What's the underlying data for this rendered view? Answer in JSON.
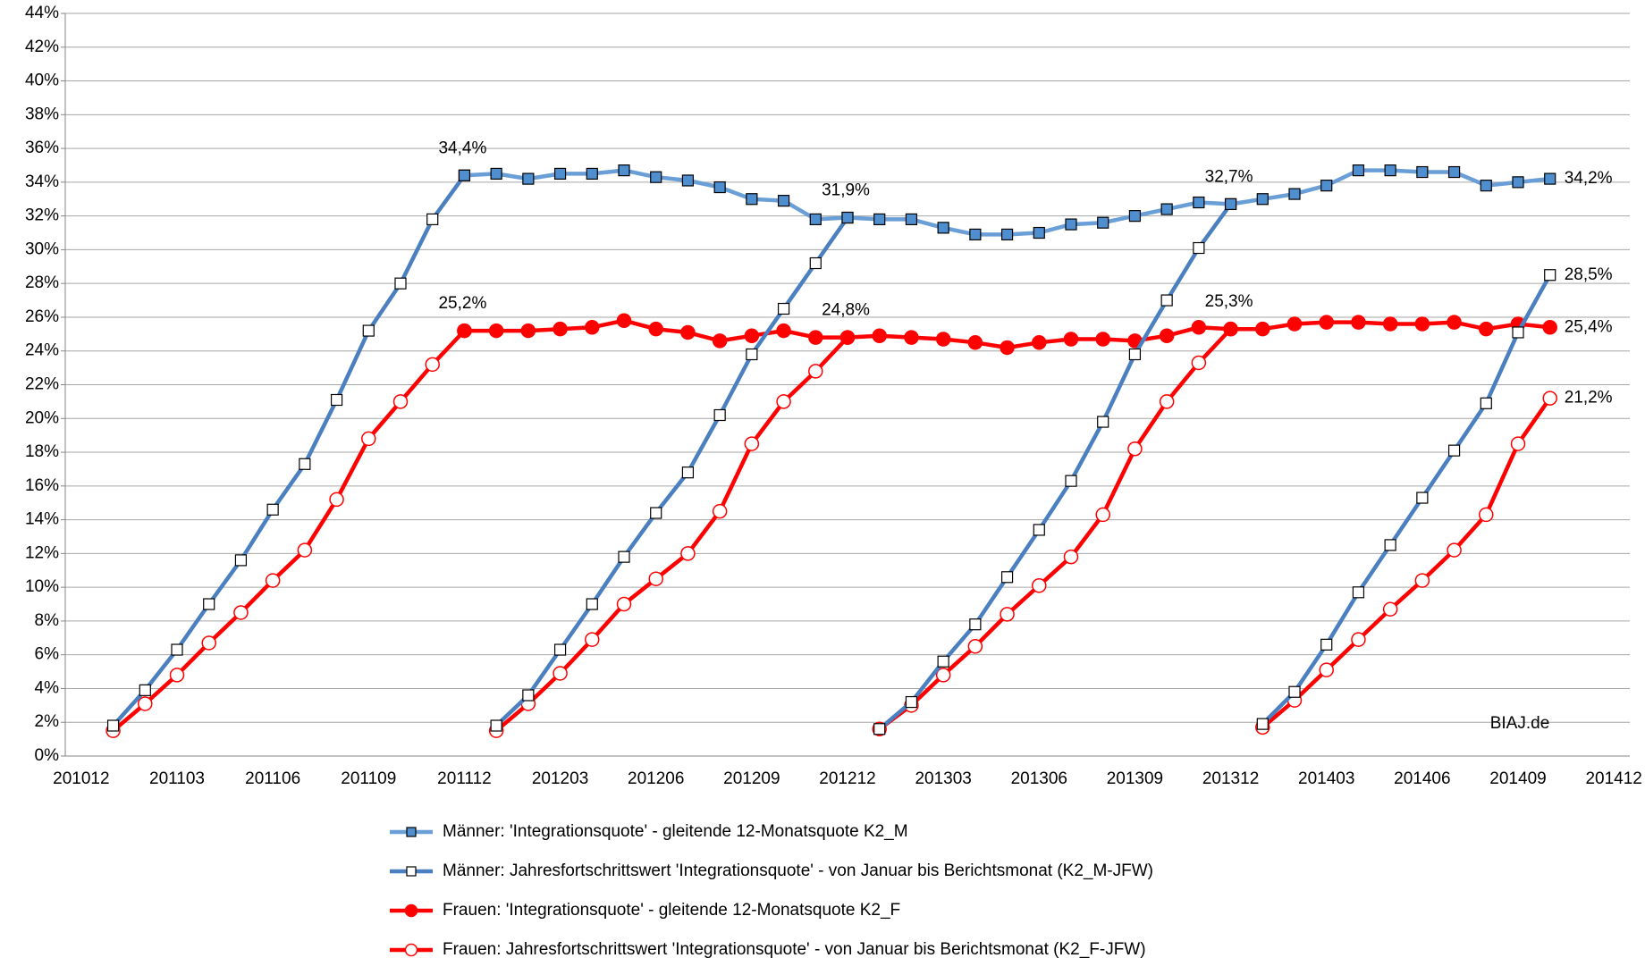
{
  "chart_data": {
    "type": "line",
    "categories": [
      "201012",
      null,
      null,
      "201103",
      null,
      null,
      "201106",
      null,
      null,
      "201109",
      null,
      null,
      "201112",
      null,
      null,
      "201203",
      null,
      null,
      "201206",
      null,
      null,
      "201209",
      null,
      null,
      "201212",
      null,
      null,
      "201303",
      null,
      null,
      "201306",
      null,
      null,
      "201309",
      null,
      null,
      "201312",
      null,
      null,
      "201403",
      null,
      null,
      "201406",
      null,
      null,
      "201409",
      null,
      null,
      "201412"
    ],
    "ylim": [
      0,
      44
    ],
    "yticks": [
      {
        "value": 0,
        "label": "0%"
      },
      {
        "value": 2,
        "label": "2%"
      },
      {
        "value": 4,
        "label": "4%"
      },
      {
        "value": 6,
        "label": "6%"
      },
      {
        "value": 8,
        "label": "8%"
      },
      {
        "value": 10,
        "label": "10%"
      },
      {
        "value": 12,
        "label": "12%"
      },
      {
        "value": 14,
        "label": "14%"
      },
      {
        "value": 16,
        "label": "16%"
      },
      {
        "value": 18,
        "label": "18%"
      },
      {
        "value": 20,
        "label": "20%"
      },
      {
        "value": 22,
        "label": "22%"
      },
      {
        "value": 24,
        "label": "24%"
      },
      {
        "value": 26,
        "label": "26%"
      },
      {
        "value": 28,
        "label": "28%"
      },
      {
        "value": 30,
        "label": "30%"
      },
      {
        "value": 32,
        "label": "32%"
      },
      {
        "value": 34,
        "label": "34%"
      },
      {
        "value": 36,
        "label": "36%"
      },
      {
        "value": 38,
        "label": "38%"
      },
      {
        "value": 40,
        "label": "40%"
      },
      {
        "value": 42,
        "label": "42%"
      },
      {
        "value": 44,
        "label": "44%"
      }
    ],
    "grid": true,
    "annotation": "BIAJ.de",
    "series": [
      {
        "name": "Männer: 'Integrationsquote' - gleitende 12-Monatsquote K2_M",
        "color": "#6a9ed6",
        "marker_color": "#4f8fd0",
        "marker": "square",
        "filled": true,
        "values": [
          null,
          null,
          null,
          null,
          null,
          null,
          null,
          null,
          null,
          null,
          null,
          null,
          34.4,
          34.5,
          34.2,
          34.5,
          34.5,
          34.7,
          34.3,
          34.1,
          33.7,
          33.0,
          32.9,
          31.8,
          31.9,
          31.8,
          31.8,
          31.3,
          30.9,
          30.9,
          31.0,
          31.5,
          31.6,
          32.0,
          32.4,
          32.8,
          32.7,
          33.0,
          33.3,
          33.8,
          34.7,
          34.7,
          34.6,
          34.6,
          33.8,
          34.0,
          34.2,
          null,
          null
        ],
        "value_labels": [
          null,
          null,
          null,
          null,
          null,
          null,
          null,
          null,
          null,
          null,
          null,
          null,
          "34,4%",
          null,
          null,
          null,
          null,
          null,
          null,
          null,
          null,
          null,
          null,
          null,
          "31,9%",
          null,
          null,
          null,
          null,
          null,
          null,
          null,
          null,
          null,
          null,
          null,
          "32,7%",
          null,
          null,
          null,
          null,
          null,
          null,
          null,
          null,
          null,
          "34,2%",
          null,
          null
        ]
      },
      {
        "name": "Männer: Jahresfortschrittswert 'Integrationsquote' - von Januar bis Berichtsmonat (K2_M-JFW)",
        "color": "#4a7fc0",
        "marker": "square",
        "filled": false,
        "values": [
          null,
          1.8,
          3.9,
          6.3,
          9.0,
          11.6,
          14.6,
          17.3,
          21.1,
          25.2,
          28.0,
          31.8,
          34.4,
          null,
          null,
          null,
          null,
          null,
          null,
          null,
          null,
          null,
          null,
          null,
          null,
          null,
          null,
          null,
          null,
          null,
          null,
          null,
          null,
          null,
          null,
          null,
          null,
          null,
          null,
          null,
          null,
          null,
          null,
          null,
          null,
          null,
          null,
          null,
          null
        ]
      },
      {
        "color": "#4a7fc0",
        "marker": "square",
        "filled": false,
        "values": [
          null,
          null,
          null,
          null,
          null,
          null,
          null,
          null,
          null,
          null,
          null,
          null,
          null,
          1.8,
          3.6,
          6.3,
          9.0,
          11.8,
          14.4,
          16.8,
          20.2,
          23.8,
          26.5,
          29.2,
          31.9,
          null,
          null,
          null,
          null,
          null,
          null,
          null,
          null,
          null,
          null,
          null,
          null,
          null,
          null,
          null,
          null,
          null,
          null,
          null,
          null,
          null,
          null,
          null,
          null
        ]
      },
      {
        "color": "#4a7fc0",
        "marker": "square",
        "filled": false,
        "values": [
          null,
          null,
          null,
          null,
          null,
          null,
          null,
          null,
          null,
          null,
          null,
          null,
          null,
          null,
          null,
          null,
          null,
          null,
          null,
          null,
          null,
          null,
          null,
          null,
          null,
          1.6,
          3.2,
          5.6,
          7.8,
          10.6,
          13.4,
          16.3,
          19.8,
          23.8,
          27.0,
          30.1,
          32.7,
          null,
          null,
          null,
          null,
          null,
          null,
          null,
          null,
          null,
          null,
          null,
          null
        ]
      },
      {
        "color": "#4a7fc0",
        "marker": "square",
        "filled": false,
        "values": [
          null,
          null,
          null,
          null,
          null,
          null,
          null,
          null,
          null,
          null,
          null,
          null,
          null,
          null,
          null,
          null,
          null,
          null,
          null,
          null,
          null,
          null,
          null,
          null,
          null,
          null,
          null,
          null,
          null,
          null,
          null,
          null,
          null,
          null,
          null,
          null,
          null,
          1.9,
          3.8,
          6.6,
          9.7,
          12.5,
          15.3,
          18.1,
          20.9,
          25.1,
          28.5,
          null,
          null
        ],
        "value_labels": [
          null,
          null,
          null,
          null,
          null,
          null,
          null,
          null,
          null,
          null,
          null,
          null,
          null,
          null,
          null,
          null,
          null,
          null,
          null,
          null,
          null,
          null,
          null,
          null,
          null,
          null,
          null,
          null,
          null,
          null,
          null,
          null,
          null,
          null,
          null,
          null,
          null,
          null,
          null,
          null,
          null,
          null,
          null,
          null,
          null,
          null,
          "28,5%",
          null,
          null
        ]
      },
      {
        "name": "Frauen: 'Integrationsquote' - gleitende 12-Monatsquote K2_F",
        "color": "#ff0000",
        "marker": "circle",
        "filled": true,
        "values": [
          null,
          null,
          null,
          null,
          null,
          null,
          null,
          null,
          null,
          null,
          null,
          null,
          25.2,
          25.2,
          25.2,
          25.3,
          25.4,
          25.8,
          25.3,
          25.1,
          24.6,
          24.9,
          25.2,
          24.8,
          24.8,
          24.9,
          24.8,
          24.7,
          24.5,
          24.2,
          24.5,
          24.7,
          24.7,
          24.6,
          24.9,
          25.4,
          25.3,
          25.3,
          25.6,
          25.7,
          25.7,
          25.6,
          25.6,
          25.7,
          25.3,
          25.6,
          25.4,
          null,
          null
        ],
        "value_labels": [
          null,
          null,
          null,
          null,
          null,
          null,
          null,
          null,
          null,
          null,
          null,
          null,
          "25,2%",
          null,
          null,
          null,
          null,
          null,
          null,
          null,
          null,
          null,
          null,
          null,
          "24,8%",
          null,
          null,
          null,
          null,
          null,
          null,
          null,
          null,
          null,
          null,
          null,
          "25,3%",
          null,
          null,
          null,
          null,
          null,
          null,
          null,
          null,
          null,
          "25,4%",
          null,
          null
        ]
      },
      {
        "name": "Frauen: Jahresfortschrittswert 'Integrationsquote' - von Januar bis Berichtsmonat (K2_F-JFW)",
        "color": "#ff0000",
        "marker": "circle",
        "filled": false,
        "values": [
          null,
          1.5,
          3.1,
          4.8,
          6.7,
          8.5,
          10.4,
          12.2,
          15.2,
          18.8,
          21.0,
          23.2,
          25.2,
          null,
          null,
          null,
          null,
          null,
          null,
          null,
          null,
          null,
          null,
          null,
          null,
          null,
          null,
          null,
          null,
          null,
          null,
          null,
          null,
          null,
          null,
          null,
          null,
          null,
          null,
          null,
          null,
          null,
          null,
          null,
          null,
          null,
          null,
          null,
          null
        ]
      },
      {
        "color": "#ff0000",
        "marker": "circle",
        "filled": false,
        "values": [
          null,
          null,
          null,
          null,
          null,
          null,
          null,
          null,
          null,
          null,
          null,
          null,
          null,
          1.5,
          3.1,
          4.9,
          6.9,
          9.0,
          10.5,
          12.0,
          14.5,
          18.5,
          21.0,
          22.8,
          24.8,
          null,
          null,
          null,
          null,
          null,
          null,
          null,
          null,
          null,
          null,
          null,
          null,
          null,
          null,
          null,
          null,
          null,
          null,
          null,
          null,
          null,
          null,
          null,
          null
        ]
      },
      {
        "color": "#ff0000",
        "marker": "circle",
        "filled": false,
        "values": [
          null,
          null,
          null,
          null,
          null,
          null,
          null,
          null,
          null,
          null,
          null,
          null,
          null,
          null,
          null,
          null,
          null,
          null,
          null,
          null,
          null,
          null,
          null,
          null,
          null,
          1.6,
          3.0,
          4.8,
          6.5,
          8.4,
          10.1,
          11.8,
          14.3,
          18.2,
          21.0,
          23.3,
          25.3,
          null,
          null,
          null,
          null,
          null,
          null,
          null,
          null,
          null,
          null,
          null,
          null
        ]
      },
      {
        "color": "#ff0000",
        "marker": "circle",
        "filled": false,
        "values": [
          null,
          null,
          null,
          null,
          null,
          null,
          null,
          null,
          null,
          null,
          null,
          null,
          null,
          null,
          null,
          null,
          null,
          null,
          null,
          null,
          null,
          null,
          null,
          null,
          null,
          null,
          null,
          null,
          null,
          null,
          null,
          null,
          null,
          null,
          null,
          null,
          null,
          1.7,
          3.3,
          5.1,
          6.9,
          8.7,
          10.4,
          12.2,
          14.3,
          18.5,
          21.2,
          null,
          null
        ],
        "value_labels": [
          null,
          null,
          null,
          null,
          null,
          null,
          null,
          null,
          null,
          null,
          null,
          null,
          null,
          null,
          null,
          null,
          null,
          null,
          null,
          null,
          null,
          null,
          null,
          null,
          null,
          null,
          null,
          null,
          null,
          null,
          null,
          null,
          null,
          null,
          null,
          null,
          null,
          null,
          null,
          null,
          null,
          null,
          null,
          null,
          null,
          null,
          "21,2%",
          null,
          null
        ]
      }
    ]
  }
}
